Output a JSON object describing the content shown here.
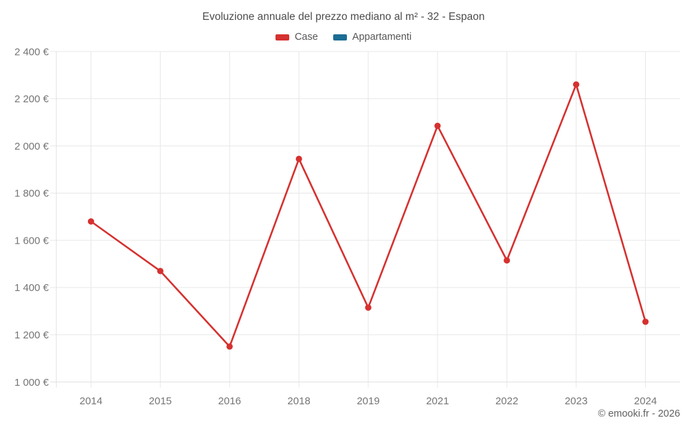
{
  "header": {
    "title": "Evoluzione annuale del prezzo mediano al m² - 32 - Espaon"
  },
  "legend": [
    {
      "label": "Case",
      "color": "#d5312f"
    },
    {
      "label": "Appartamenti",
      "color": "#1b6d94"
    }
  ],
  "footer": {
    "credit": "© emooki.fr - 2026"
  },
  "chart_data": {
    "type": "line",
    "title": "Evoluzione annuale del prezzo mediano al m² - 32 - Espaon",
    "categories": [
      "2014",
      "2015",
      "2016",
      "2018",
      "2019",
      "2021",
      "2022",
      "2023",
      "2024"
    ],
    "series": [
      {
        "name": "Case",
        "color": "#d5312f",
        "values": [
          1680,
          1470,
          1150,
          1945,
          1315,
          2085,
          1515,
          2260,
          1255
        ]
      },
      {
        "name": "Appartamenti",
        "color": "#1b6d94",
        "values": []
      }
    ],
    "xlabel": "",
    "ylabel": "",
    "ylim": [
      1000,
      2400
    ],
    "ytick_step": 200,
    "ytick_labels": [
      "1 000 €",
      "1 200 €",
      "1 400 €",
      "1 600 €",
      "1 800 €",
      "2 000 €",
      "2 200 €",
      "2 400 €"
    ],
    "grid": true,
    "legend_position": "top",
    "marker": "circle"
  }
}
